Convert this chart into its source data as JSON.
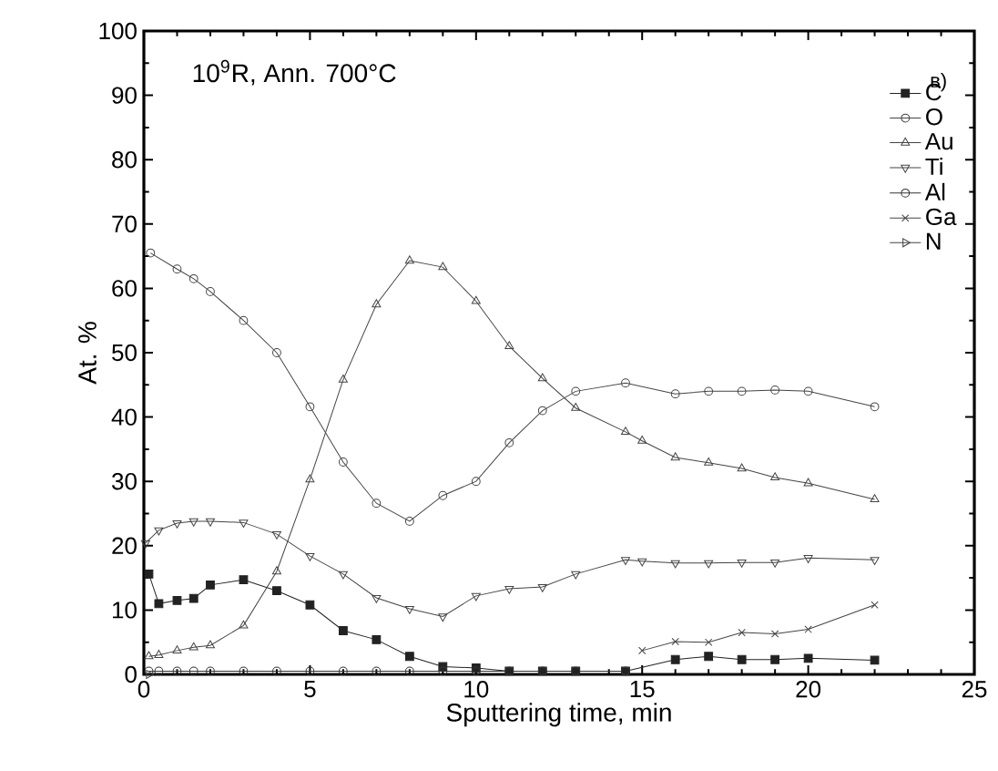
{
  "chart_data": {
    "type": "line",
    "xlabel": "Sputtering time, min",
    "ylabel": "At. %",
    "xlim": [
      0,
      25
    ],
    "ylim": [
      0,
      100
    ],
    "xticks": [
      0,
      5,
      10,
      15,
      20,
      25
    ],
    "yticks": [
      0,
      10,
      20,
      30,
      40,
      50,
      60,
      70,
      80,
      90,
      100
    ],
    "grid": false,
    "legend": "top right",
    "line_style": "solid",
    "annotations": [
      "10$^{9}$R, Ann. 700°C",
      "в)"
    ],
    "series": [
      {
        "name": "C",
        "color": "#222222",
        "marker": "square-filled",
        "x": [
          0.15,
          0.45,
          1,
          1.5,
          2,
          3,
          4,
          5,
          6,
          7,
          8,
          9,
          10,
          11,
          12,
          13,
          14.5,
          16,
          17,
          18,
          19,
          20,
          22
        ],
        "values": [
          15.6,
          11,
          11.5,
          11.8,
          13.9,
          14.7,
          13,
          10.8,
          6.8,
          5.4,
          2.8,
          1.2,
          1,
          0.5,
          0.5,
          0.5,
          0.5,
          2.3,
          2.8,
          2.3,
          2.3,
          2.5,
          2.2
        ]
      },
      {
        "name": "O",
        "color": "#444444",
        "marker": "circle",
        "x": [
          0.2,
          1,
          1.5,
          2,
          3,
          4,
          5,
          6,
          7,
          8,
          9,
          10,
          11,
          12,
          13,
          14.5,
          16,
          17,
          18,
          19,
          20,
          22
        ],
        "values": [
          65.5,
          63,
          61.5,
          59.5,
          55,
          50,
          41.6,
          33,
          26.6,
          23.8,
          27.8,
          30,
          36,
          41,
          44,
          45.3,
          43.6,
          44,
          44,
          44.2,
          44,
          41.6
        ]
      },
      {
        "name": "Au",
        "color": "#444444",
        "marker": "triangle",
        "x": [
          0.15,
          0.45,
          1,
          1.5,
          2,
          3,
          4,
          5,
          6,
          7,
          8,
          9,
          10,
          11,
          12,
          13,
          14.5,
          15,
          16,
          17,
          18,
          19,
          20,
          22
        ],
        "values": [
          2.8,
          3,
          3.7,
          4.2,
          4.5,
          7.6,
          16,
          30.3,
          45.8,
          57.5,
          64.3,
          63.3,
          58,
          51,
          46,
          41.4,
          37.7,
          36.3,
          33.7,
          32.9,
          32,
          30.6,
          29.7,
          27.2
        ]
      },
      {
        "name": "Ti",
        "color": "#444444",
        "marker": "triangle-down",
        "x": [
          0.05,
          0.45,
          1,
          1.5,
          2,
          3,
          4,
          5,
          6,
          7,
          8,
          9,
          10,
          11,
          12,
          13,
          14.5,
          15,
          16,
          17,
          18,
          19,
          20,
          22
        ],
        "values": [
          20.4,
          22.4,
          23.5,
          23.8,
          23.8,
          23.6,
          21.8,
          18.4,
          15.6,
          11.9,
          10.2,
          9,
          12.2,
          13.3,
          13.6,
          15.6,
          17.8,
          17.6,
          17.3,
          17.3,
          17.4,
          17.4,
          18.1,
          17.8
        ]
      },
      {
        "name": "Al",
        "color": "#333333",
        "marker": "circle",
        "x": [
          0.15,
          0.45,
          1,
          1.5,
          2,
          3,
          4,
          5,
          6,
          7,
          8,
          9,
          10,
          11,
          12,
          13,
          14.5
        ],
        "values": [
          0.5,
          0.5,
          0.5,
          0.5,
          0.5,
          0.5,
          0.5,
          0.5,
          0.5,
          0.5,
          0.5,
          0.5,
          0.5,
          0.5,
          0.5,
          0.5,
          0.5
        ]
      },
      {
        "name": "Ga",
        "color": "#444444",
        "marker": "cross",
        "x": [
          15,
          16,
          17,
          18,
          19,
          20,
          22
        ],
        "values": [
          3.7,
          5.1,
          5,
          6.5,
          6.3,
          7,
          10.8
        ]
      },
      {
        "name": "N",
        "color": "#444444",
        "marker": "triangle-right",
        "x": [
          0.15
        ],
        "values": [
          0
        ]
      }
    ]
  }
}
